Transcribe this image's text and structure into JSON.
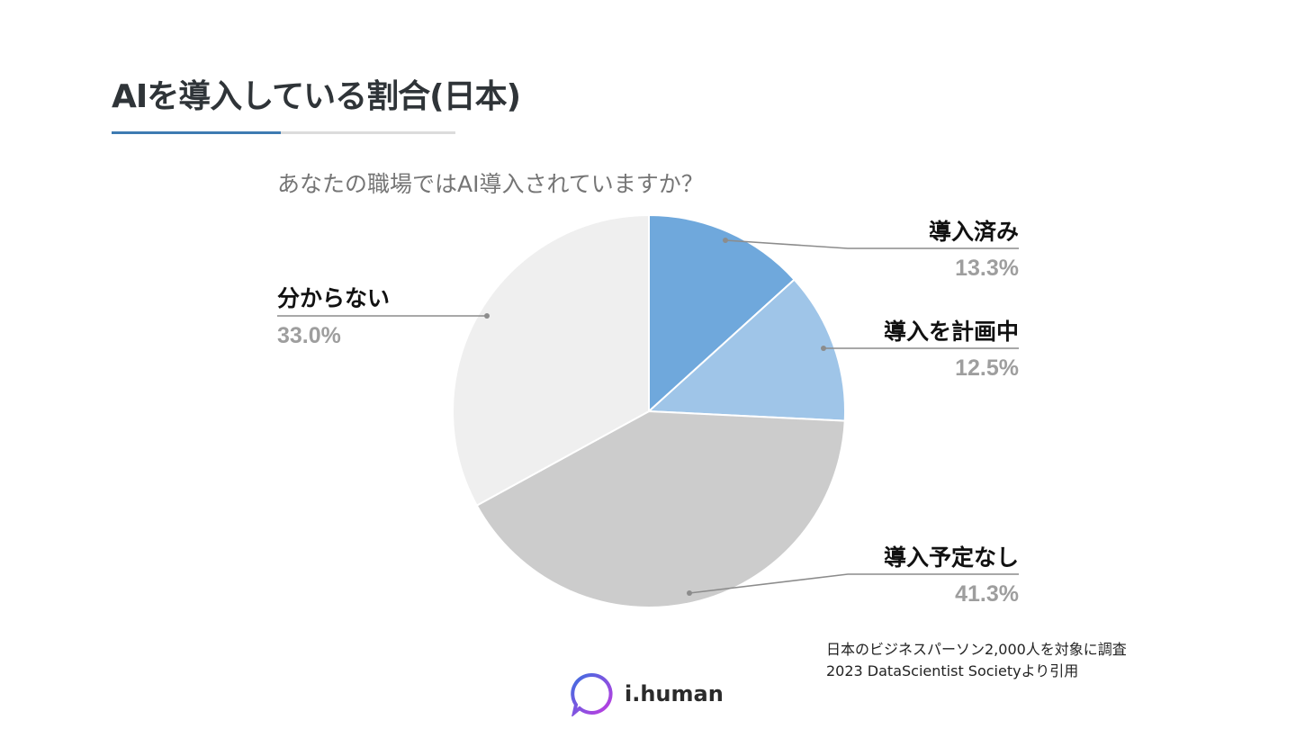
{
  "slide": {
    "title": "AIを導入している割合(日本)"
  },
  "chart_data": {
    "type": "pie",
    "title": "あなたの職場ではAI導入されていますか？",
    "slices": [
      {
        "label": "導入済み",
        "value": 13.3,
        "value_label": "13.3%",
        "color": "#6fa8dc"
      },
      {
        "label": "導入を計画中",
        "value": 12.5,
        "value_label": "12.5%",
        "color": "#9fc5e8"
      },
      {
        "label": "導入予定なし",
        "value": 41.3,
        "value_label": "41.3%",
        "color": "#cccccc"
      },
      {
        "label": "分からない",
        "value": 33.0,
        "value_label": "33.0%",
        "color": "#efefef"
      }
    ],
    "start_angle": "12 o'clock",
    "direction": "clockwise"
  },
  "source": {
    "line1": "日本のビジネスパーソン2,000人を対象に調査",
    "line2": "2023 DataScientist Societyより引用"
  },
  "logo": {
    "text": "i.human",
    "colors": [
      "#3b6fe0",
      "#c13be0"
    ]
  }
}
